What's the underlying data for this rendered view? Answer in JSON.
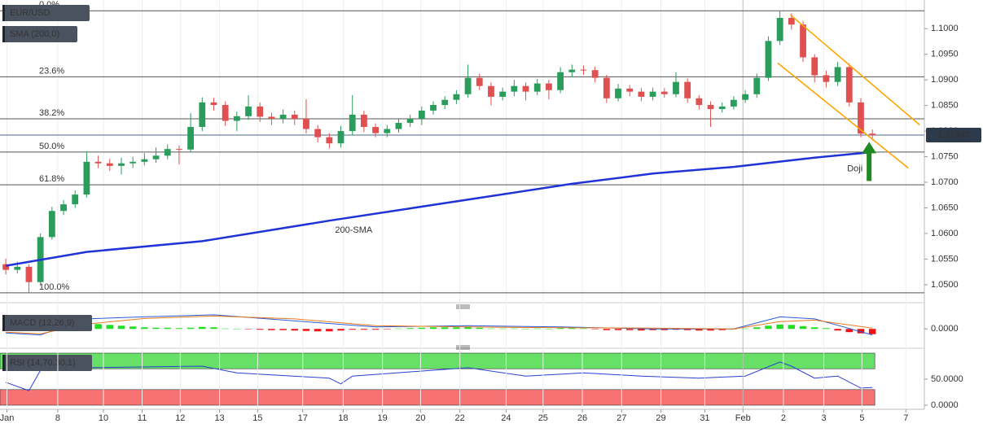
{
  "chart_data": [
    {
      "type": "candlestick",
      "xlim": [
        -0.5,
        79.5
      ],
      "ylim": [
        1.0468,
        1.1056
      ],
      "yticks": [
        {
          "value": 1.1,
          "label": "1.1000"
        },
        {
          "value": 1.095,
          "label": "1.0950"
        },
        {
          "value": 1.09,
          "label": "1.0900"
        },
        {
          "value": 1.085,
          "label": "1.0850"
        },
        {
          "value": 1.08,
          "label": "1.0800"
        },
        {
          "value": 1.075,
          "label": "1.0750"
        },
        {
          "value": 1.07,
          "label": "1.0700"
        },
        {
          "value": 1.065,
          "label": "1.0650"
        },
        {
          "value": 1.06,
          "label": "1.0600"
        },
        {
          "value": 1.055,
          "label": "1.0550"
        },
        {
          "value": 1.05,
          "label": "1.0500"
        }
      ],
      "series": [
        {
          "name": "EUR/USD",
          "up_color": "#2a9d5c",
          "down_color": "#e05050",
          "values": [
            [
              1.054,
              1.0551,
              1.052,
              1.0529
            ],
            [
              1.0529,
              1.0545,
              1.0522,
              1.0535
            ],
            [
              1.0535,
              1.054,
              1.0484,
              1.0505
            ],
            [
              1.0505,
              1.06,
              1.0498,
              1.0593
            ],
            [
              1.0593,
              1.0652,
              1.0588,
              1.0644
            ],
            [
              1.0644,
              1.0665,
              1.0636,
              1.0657
            ],
            [
              1.0657,
              1.0684,
              1.065,
              1.0676
            ],
            [
              1.0676,
              1.076,
              1.067,
              1.074
            ],
            [
              1.074,
              1.0752,
              1.0728,
              1.0737
            ],
            [
              1.0737,
              1.0746,
              1.0722,
              1.0732
            ],
            [
              1.0732,
              1.0748,
              1.0715,
              1.0737
            ],
            [
              1.0737,
              1.075,
              1.0728,
              1.074
            ],
            [
              1.074,
              1.0757,
              1.0733,
              1.0745
            ],
            [
              1.0745,
              1.0768,
              1.0738,
              1.0752
            ],
            [
              1.0752,
              1.0774,
              1.0745,
              1.0765
            ],
            [
              1.0765,
              1.0772,
              1.0735,
              1.0764
            ],
            [
              1.0764,
              1.0835,
              1.0758,
              1.0808
            ],
            [
              1.0808,
              1.0866,
              1.08,
              1.0856
            ],
            [
              1.0856,
              1.0865,
              1.084,
              1.0851
            ],
            [
              1.0851,
              1.0858,
              1.081,
              1.082
            ],
            [
              1.082,
              1.0838,
              1.08,
              1.0829
            ],
            [
              1.0829,
              1.087,
              1.0822,
              1.0848
            ],
            [
              1.0848,
              1.0856,
              1.0818,
              1.0828
            ],
            [
              1.0828,
              1.0836,
              1.0812,
              1.0824
            ],
            [
              1.0824,
              1.0842,
              1.0815,
              1.0832
            ],
            [
              1.0832,
              1.084,
              1.0812,
              1.0824
            ],
            [
              1.0824,
              1.0862,
              1.0795,
              1.0804
            ],
            [
              1.0804,
              1.0812,
              1.0778,
              1.0788
            ],
            [
              1.0788,
              1.0796,
              1.0766,
              1.0776
            ],
            [
              1.0776,
              1.081,
              1.0768,
              1.08
            ],
            [
              1.08,
              1.087,
              1.0792,
              1.0832
            ],
            [
              1.0832,
              1.084,
              1.0798,
              1.0808
            ],
            [
              1.0808,
              1.0815,
              1.0788,
              1.0796
            ],
            [
              1.0796,
              1.0812,
              1.0788,
              1.0804
            ],
            [
              1.0804,
              1.0825,
              1.0797,
              1.0816
            ],
            [
              1.0816,
              1.0832,
              1.0808,
              1.0824
            ],
            [
              1.0824,
              1.0848,
              1.0812,
              1.084
            ],
            [
              1.084,
              1.0858,
              1.0832,
              1.0851
            ],
            [
              1.0851,
              1.0868,
              1.0843,
              1.0861
            ],
            [
              1.0861,
              1.088,
              1.0853,
              1.0872
            ],
            [
              1.0872,
              1.093,
              1.0865,
              1.0904
            ],
            [
              1.0904,
              1.0912,
              1.088,
              1.0888
            ],
            [
              1.0888,
              1.0895,
              1.085,
              1.0867
            ],
            [
              1.0867,
              1.0885,
              1.086,
              1.0877
            ],
            [
              1.0877,
              1.09,
              1.0868,
              1.0888
            ],
            [
              1.0888,
              1.0895,
              1.086,
              1.0877
            ],
            [
              1.0877,
              1.0902,
              1.087,
              1.0893
            ],
            [
              1.0893,
              1.09,
              1.0862,
              1.088
            ],
            [
              1.088,
              1.0925,
              1.0874,
              1.0915
            ],
            [
              1.0915,
              1.093,
              1.0905,
              1.092
            ],
            [
              1.092,
              1.0928,
              1.091,
              1.0919
            ],
            [
              1.0919,
              1.0926,
              1.0895,
              1.0904
            ],
            [
              1.0904,
              1.091,
              1.0855,
              1.0864
            ],
            [
              1.0864,
              1.0892,
              1.0858,
              1.0883
            ],
            [
              1.0883,
              1.089,
              1.0868,
              1.0877
            ],
            [
              1.0877,
              1.0884,
              1.0858,
              1.0867
            ],
            [
              1.0867,
              1.0885,
              1.086,
              1.0877
            ],
            [
              1.0877,
              1.0884,
              1.0865,
              1.0872
            ],
            [
              1.0872,
              1.0915,
              1.0866,
              1.0896
            ],
            [
              1.0896,
              1.0903,
              1.0855,
              1.0864
            ],
            [
              1.0864,
              1.087,
              1.0842,
              1.0851
            ],
            [
              1.0851,
              1.0858,
              1.0808,
              1.0843
            ],
            [
              1.0843,
              1.0856,
              1.0836,
              1.0848
            ],
            [
              1.0848,
              1.0868,
              1.0842,
              1.0861
            ],
            [
              1.0861,
              1.088,
              1.0855,
              1.0872
            ],
            [
              1.0872,
              1.0912,
              1.0865,
              1.0904
            ],
            [
              1.0904,
              1.0985,
              1.0898,
              1.0976
            ],
            [
              1.0976,
              1.1035,
              1.0968,
              1.1021
            ],
            [
              1.1021,
              1.103,
              1.0998,
              1.1008
            ],
            [
              1.1008,
              1.1015,
              1.0935,
              1.0944
            ],
            [
              1.0944,
              1.095,
              1.0895,
              1.0909
            ],
            [
              1.0909,
              1.0918,
              1.0885,
              1.0896
            ],
            [
              1.0896,
              1.0935,
              1.0888,
              1.0925
            ],
            [
              1.0925,
              1.0932,
              1.0848,
              1.0856
            ],
            [
              1.0856,
              1.0864,
              1.0788,
              1.0795
            ],
            [
              1.0795,
              1.0803,
              1.0782,
              1.0792
            ]
          ]
        },
        {
          "name": "SMA (200,0)",
          "label": "200-SMA",
          "color": "#1f33d6",
          "label_color": "#6a45c0",
          "x": [
            0,
            7,
            17,
            28,
            35,
            42,
            49,
            56,
            63,
            70,
            75
          ],
          "values": [
            1.0537,
            1.0564,
            1.0585,
            1.0625,
            1.0649,
            1.0673,
            1.0697,
            1.0717,
            1.073,
            1.0748,
            1.0759
          ]
        }
      ],
      "fib_levels": [
        {
          "label": "0.0%",
          "value": 1.1035
        },
        {
          "label": "23.6%",
          "value": 1.0906
        },
        {
          "label": "38.2%",
          "value": 1.0824
        },
        {
          "label": "50.0%",
          "value": 1.0759
        },
        {
          "label": "61.8%",
          "value": 1.0695
        },
        {
          "label": "100.0%",
          "value": 1.0484
        }
      ],
      "trendlines": [
        {
          "x": [
            67.9,
            79.1
          ],
          "values": [
            1.1027,
            1.0812
          ]
        },
        {
          "x": [
            66.8,
            78.1
          ],
          "values": [
            1.0933,
            1.0728
          ]
        }
      ],
      "trendline_color": "#ffa500",
      "last_price": 1.07922,
      "annotation": {
        "text": "Doji",
        "color": "#2e9e2e"
      }
    },
    {
      "type": "macd",
      "title": "MACD (12,26,9)",
      "xlim": [
        -0.5,
        79.5
      ],
      "ylim": [
        -0.004,
        0.0045
      ],
      "yticks": [
        {
          "value": 0,
          "label": "0.0000"
        }
      ],
      "histogram": {
        "up_color": "#22dd22",
        "down_color": "#ee1111",
        "values": [
          -0.0004,
          -0.0005,
          -0.0004,
          0.0002,
          0.0006,
          0.0009,
          0.0011,
          0.0013,
          0.0012,
          0.001,
          0.0008,
          0.0006,
          0.0004,
          0.0003,
          0.0003,
          0.0002,
          0.0003,
          0.0005,
          0.0004,
          0.0001,
          0,
          -0.0001,
          -0.0002,
          -0.0003,
          -0.0003,
          -0.0004,
          -0.0005,
          -0.0006,
          -0.0006,
          -0.0004,
          -0.0002,
          -0.0002,
          -0.0002,
          -0.0001,
          0.0001,
          0.0002,
          0.0003,
          0.0004,
          0.0004,
          0.0004,
          0.0005,
          0.0003,
          0.0001,
          0.0001,
          0.0001,
          0,
          0.0001,
          0,
          0.0002,
          0.0002,
          0.0001,
          -0.0001,
          -0.0003,
          -0.0003,
          -0.0003,
          -0.0004,
          -0.0003,
          -0.0003,
          -0.0002,
          -0.0003,
          -0.0004,
          -0.0004,
          -0.0003,
          -0.0001,
          0.0001,
          0.0004,
          0.0008,
          0.0011,
          0.001,
          0.0007,
          0.0004,
          0.0002,
          -0.0004,
          -0.0008,
          -0.0011,
          -0.0013
        ]
      },
      "macd_line": {
        "color": "#2a5bd7",
        "x": [
          0,
          3,
          7,
          12,
          18,
          25,
          32,
          40,
          48,
          56,
          63,
          67,
          70,
          75
        ],
        "values": [
          -0.001,
          -0.0015,
          0.0025,
          0.003,
          0.0035,
          0.002,
          0.0005,
          0.0008,
          0.0005,
          0,
          0,
          0.003,
          0.0025,
          -0.0015
        ]
      },
      "signal_line": {
        "color": "#e87a1e",
        "x": [
          0,
          3,
          7,
          12,
          18,
          25,
          32,
          40,
          48,
          56,
          63,
          67,
          70,
          75
        ],
        "values": [
          -0.0008,
          -0.0012,
          0.0012,
          0.0026,
          0.0032,
          0.0025,
          0.0008,
          0.0005,
          0.0003,
          0.0002,
          0,
          0.0018,
          0.0022,
          0.0002
        ]
      }
    },
    {
      "type": "rsi",
      "title": "RSI (14,70,30,1)",
      "xlim": [
        -0.5,
        79.5
      ],
      "ylim": [
        0,
        100
      ],
      "yticks": [
        {
          "value": 50,
          "label": "50.0000"
        },
        {
          "value": 0,
          "label": "0.0000"
        }
      ],
      "zones": [
        {
          "range": [
            70,
            100
          ],
          "color": "#66e066"
        },
        {
          "range": [
            0,
            30
          ],
          "color": "#f77272"
        }
      ],
      "line": {
        "color": "#2a3fd0",
        "x": [
          0,
          2,
          3,
          7,
          17,
          20,
          28,
          29,
          30,
          40,
          45,
          50,
          55,
          60,
          64,
          67,
          68,
          70,
          72,
          74,
          75
        ],
        "values": [
          44,
          28,
          67,
          72,
          75,
          62,
          52,
          41,
          56,
          72,
          56,
          62,
          56,
          52,
          56,
          83,
          75,
          52,
          56,
          33,
          34
        ]
      },
      "grid": true,
      "xticks": [
        {
          "value": 0.1,
          "label": "Jan"
        },
        {
          "value": 4.5,
          "label": "8"
        },
        {
          "value": 8.45,
          "label": "10"
        },
        {
          "value": 11.8,
          "label": "11"
        },
        {
          "value": 15.1,
          "label": "12"
        },
        {
          "value": 18.5,
          "label": "13"
        },
        {
          "value": 21.8,
          "label": "15"
        },
        {
          "value": 25.7,
          "label": "17"
        },
        {
          "value": 29.2,
          "label": "18"
        },
        {
          "value": 32.6,
          "label": "19"
        },
        {
          "value": 35.9,
          "label": "20"
        },
        {
          "value": 39.3,
          "label": "22"
        },
        {
          "value": 43.3,
          "label": "24"
        },
        {
          "value": 46.5,
          "label": "25"
        },
        {
          "value": 49.9,
          "label": "26"
        },
        {
          "value": 53.3,
          "label": "27"
        },
        {
          "value": 56.7,
          "label": "29"
        },
        {
          "value": 60.5,
          "label": "31"
        },
        {
          "value": 63.8,
          "label": "Feb"
        },
        {
          "value": 67.3,
          "label": "2"
        },
        {
          "value": 70.8,
          "label": "3"
        },
        {
          "value": 74.1,
          "label": "5"
        },
        {
          "value": 77.9,
          "label": "7"
        }
      ]
    }
  ]
}
